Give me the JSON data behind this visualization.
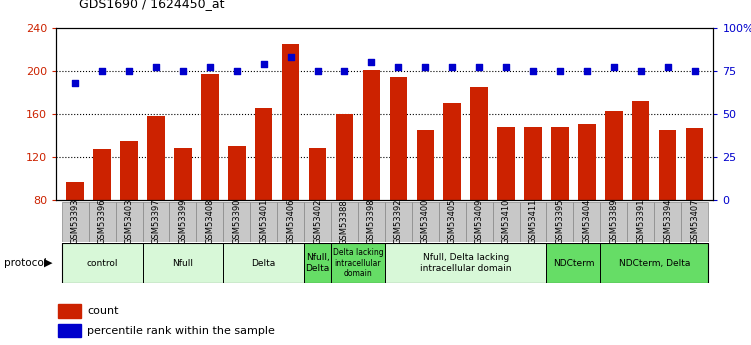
{
  "title": "GDS1690 / 1624450_at",
  "samples": [
    "GSM53393",
    "GSM53396",
    "GSM53403",
    "GSM53397",
    "GSM53399",
    "GSM53408",
    "GSM53390",
    "GSM53401",
    "GSM53406",
    "GSM53402",
    "GSM53388",
    "GSM53398",
    "GSM53392",
    "GSM53400",
    "GSM53405",
    "GSM53409",
    "GSM53410",
    "GSM53411",
    "GSM53395",
    "GSM53404",
    "GSM53389",
    "GSM53391",
    "GSM53394",
    "GSM53407"
  ],
  "counts": [
    97,
    127,
    135,
    158,
    128,
    197,
    130,
    165,
    225,
    128,
    160,
    201,
    194,
    145,
    170,
    185,
    148,
    148,
    148,
    151,
    163,
    172,
    145,
    147
  ],
  "percentiles": [
    68,
    75,
    75,
    77,
    75,
    77,
    75,
    79,
    83,
    75,
    75,
    80,
    77,
    77,
    77,
    77,
    77,
    75,
    75,
    75,
    77,
    75,
    77,
    75
  ],
  "ylim_left": [
    80,
    240
  ],
  "ylim_right": [
    0,
    100
  ],
  "yticks_left": [
    80,
    120,
    160,
    200,
    240
  ],
  "yticks_right": [
    0,
    25,
    50,
    75,
    100
  ],
  "ytick_labels_left": [
    "80",
    "120",
    "160",
    "200",
    "240"
  ],
  "ytick_labels_right": [
    "0",
    "25",
    "50",
    "75",
    "100%"
  ],
  "bar_color": "#cc2200",
  "dot_color": "#0000cc",
  "bg_color": "#ffffff",
  "cell_bg": "#c8c8c8",
  "cell_border": "#888888",
  "protocol_groups": [
    {
      "label": "control",
      "start": 0,
      "end": 3,
      "color": "#d8f8d8"
    },
    {
      "label": "Nfull",
      "start": 3,
      "end": 6,
      "color": "#d8f8d8"
    },
    {
      "label": "Delta",
      "start": 6,
      "end": 9,
      "color": "#d8f8d8"
    },
    {
      "label": "Nfull,\nDelta",
      "start": 9,
      "end": 10,
      "color": "#66dd66"
    },
    {
      "label": "Delta lacking\nintracellular\ndomain",
      "start": 10,
      "end": 12,
      "color": "#66dd66"
    },
    {
      "label": "Nfull, Delta lacking\nintracellular domain",
      "start": 12,
      "end": 18,
      "color": "#d8f8d8"
    },
    {
      "label": "NDCterm",
      "start": 18,
      "end": 20,
      "color": "#66dd66"
    },
    {
      "label": "NDCterm, Delta",
      "start": 20,
      "end": 24,
      "color": "#66dd66"
    }
  ],
  "legend_count_label": "count",
  "legend_pct_label": "percentile rank within the sample",
  "xlabel_protocol": "protocol"
}
